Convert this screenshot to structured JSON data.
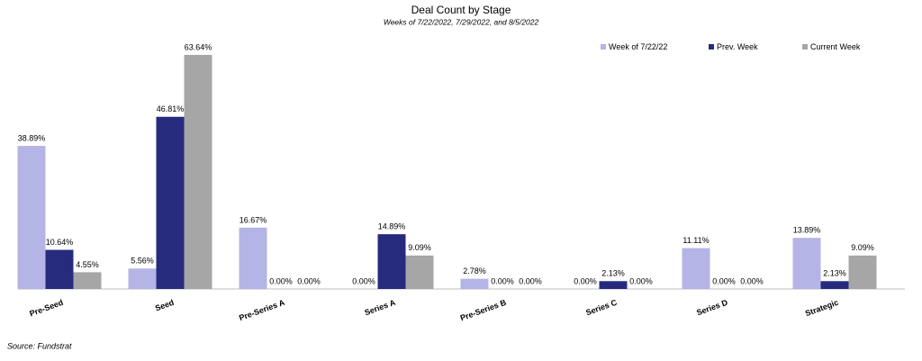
{
  "chart_data": {
    "type": "bar",
    "title": "Deal Count by Stage",
    "subtitle": "Weeks of 7/22/2022, 7/29/2022, and 8/5/2022",
    "categories": [
      "Pre-Seed",
      "Seed",
      "Pre-Series A",
      "Series A",
      "Pre-Series B",
      "Series C",
      "Series D",
      "Strategic"
    ],
    "series": [
      {
        "name": "Week of 7/22/22",
        "color": "#b4b4e6",
        "values": [
          38.89,
          5.56,
          16.67,
          0,
          2.78,
          0,
          11.11,
          13.89
        ],
        "value_labels": [
          "38.89%",
          "5.56%",
          "16.67%",
          "0.00%",
          "2.78%",
          "0.00%",
          "11.11%",
          "13.89%"
        ]
      },
      {
        "name": "Prev. Week",
        "color": "#262b7e",
        "values": [
          10.64,
          46.81,
          0,
          14.89,
          0,
          2.13,
          0,
          2.13
        ],
        "value_labels": [
          "10.64%",
          "46.81%",
          "0.00%",
          "14.89%",
          "0.00%",
          "2.13%",
          "0.00%",
          "2.13%"
        ]
      },
      {
        "name": "Current Week",
        "color": "#a6a6a6",
        "values": [
          4.55,
          63.64,
          0,
          9.09,
          0,
          0,
          0,
          9.09
        ],
        "value_labels": [
          "4.55%",
          "63.64%",
          "0.00%",
          "9.09%",
          "0.00%",
          "0.00%",
          "0.00%",
          "9.09%"
        ]
      }
    ],
    "legend": "top-right",
    "source": "Source: Fundstrat"
  }
}
